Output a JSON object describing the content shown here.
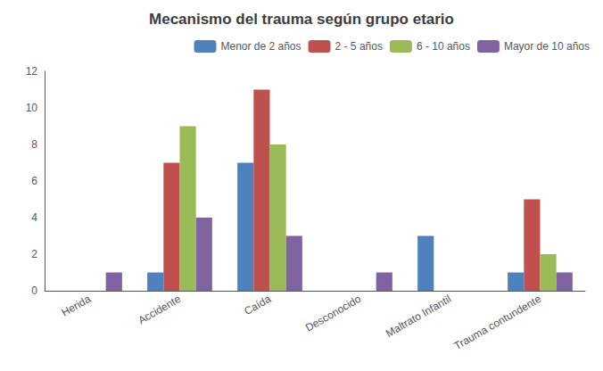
{
  "chart_data": {
    "type": "bar",
    "title": "Mecanismo del trauma según grupo etario",
    "categories": [
      "Herida",
      "Accidente",
      "Caída",
      "Desconocido",
      "Maltrato Infantil",
      "Trauma contundente"
    ],
    "series": [
      {
        "name": "Menor de 2 años",
        "color": "#4f81bd",
        "values": [
          0,
          1,
          7,
          0,
          3,
          1
        ]
      },
      {
        "name": "2 - 5 años",
        "color": "#c0504d",
        "values": [
          0,
          7,
          11,
          0,
          0,
          5
        ]
      },
      {
        "name": "6 - 10 años",
        "color": "#9bbb59",
        "values": [
          0,
          9,
          8,
          0,
          0,
          2
        ]
      },
      {
        "name": "Mayor de 10 años",
        "color": "#8064a2",
        "values": [
          1,
          4,
          3,
          1,
          0,
          1
        ]
      }
    ],
    "ylim": [
      0,
      12
    ],
    "yticks": [
      0,
      2,
      4,
      6,
      8,
      10,
      12
    ],
    "grid": false,
    "legend": "upper right"
  }
}
